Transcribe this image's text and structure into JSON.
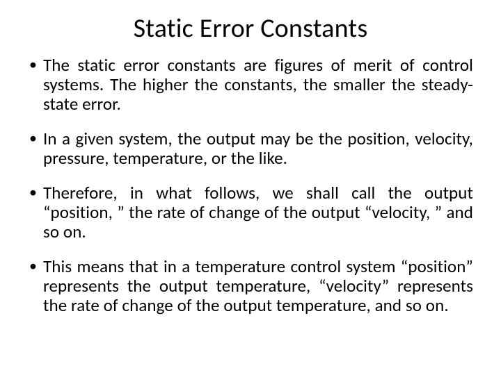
{
  "title": "Static Error Constants",
  "bullets": [
    "The static error constants are figures of merit of control systems. The higher the constants, the smaller the steady-state error.",
    "In a given system, the output may be the position, velocity, pressure, temperature, or the like.",
    "Therefore, in what follows, we shall call the output “position, ” the rate of change of the output “velocity, ” and so on.",
    "This means that in a temperature control system “position” represents the output temperature, “velocity” represents the rate of change of the output temperature, and so on."
  ],
  "style": {
    "background_color": "#ffffff",
    "text_color": "#000000",
    "title_fontsize": 38,
    "body_fontsize": 25,
    "font_family": "Calibri"
  }
}
